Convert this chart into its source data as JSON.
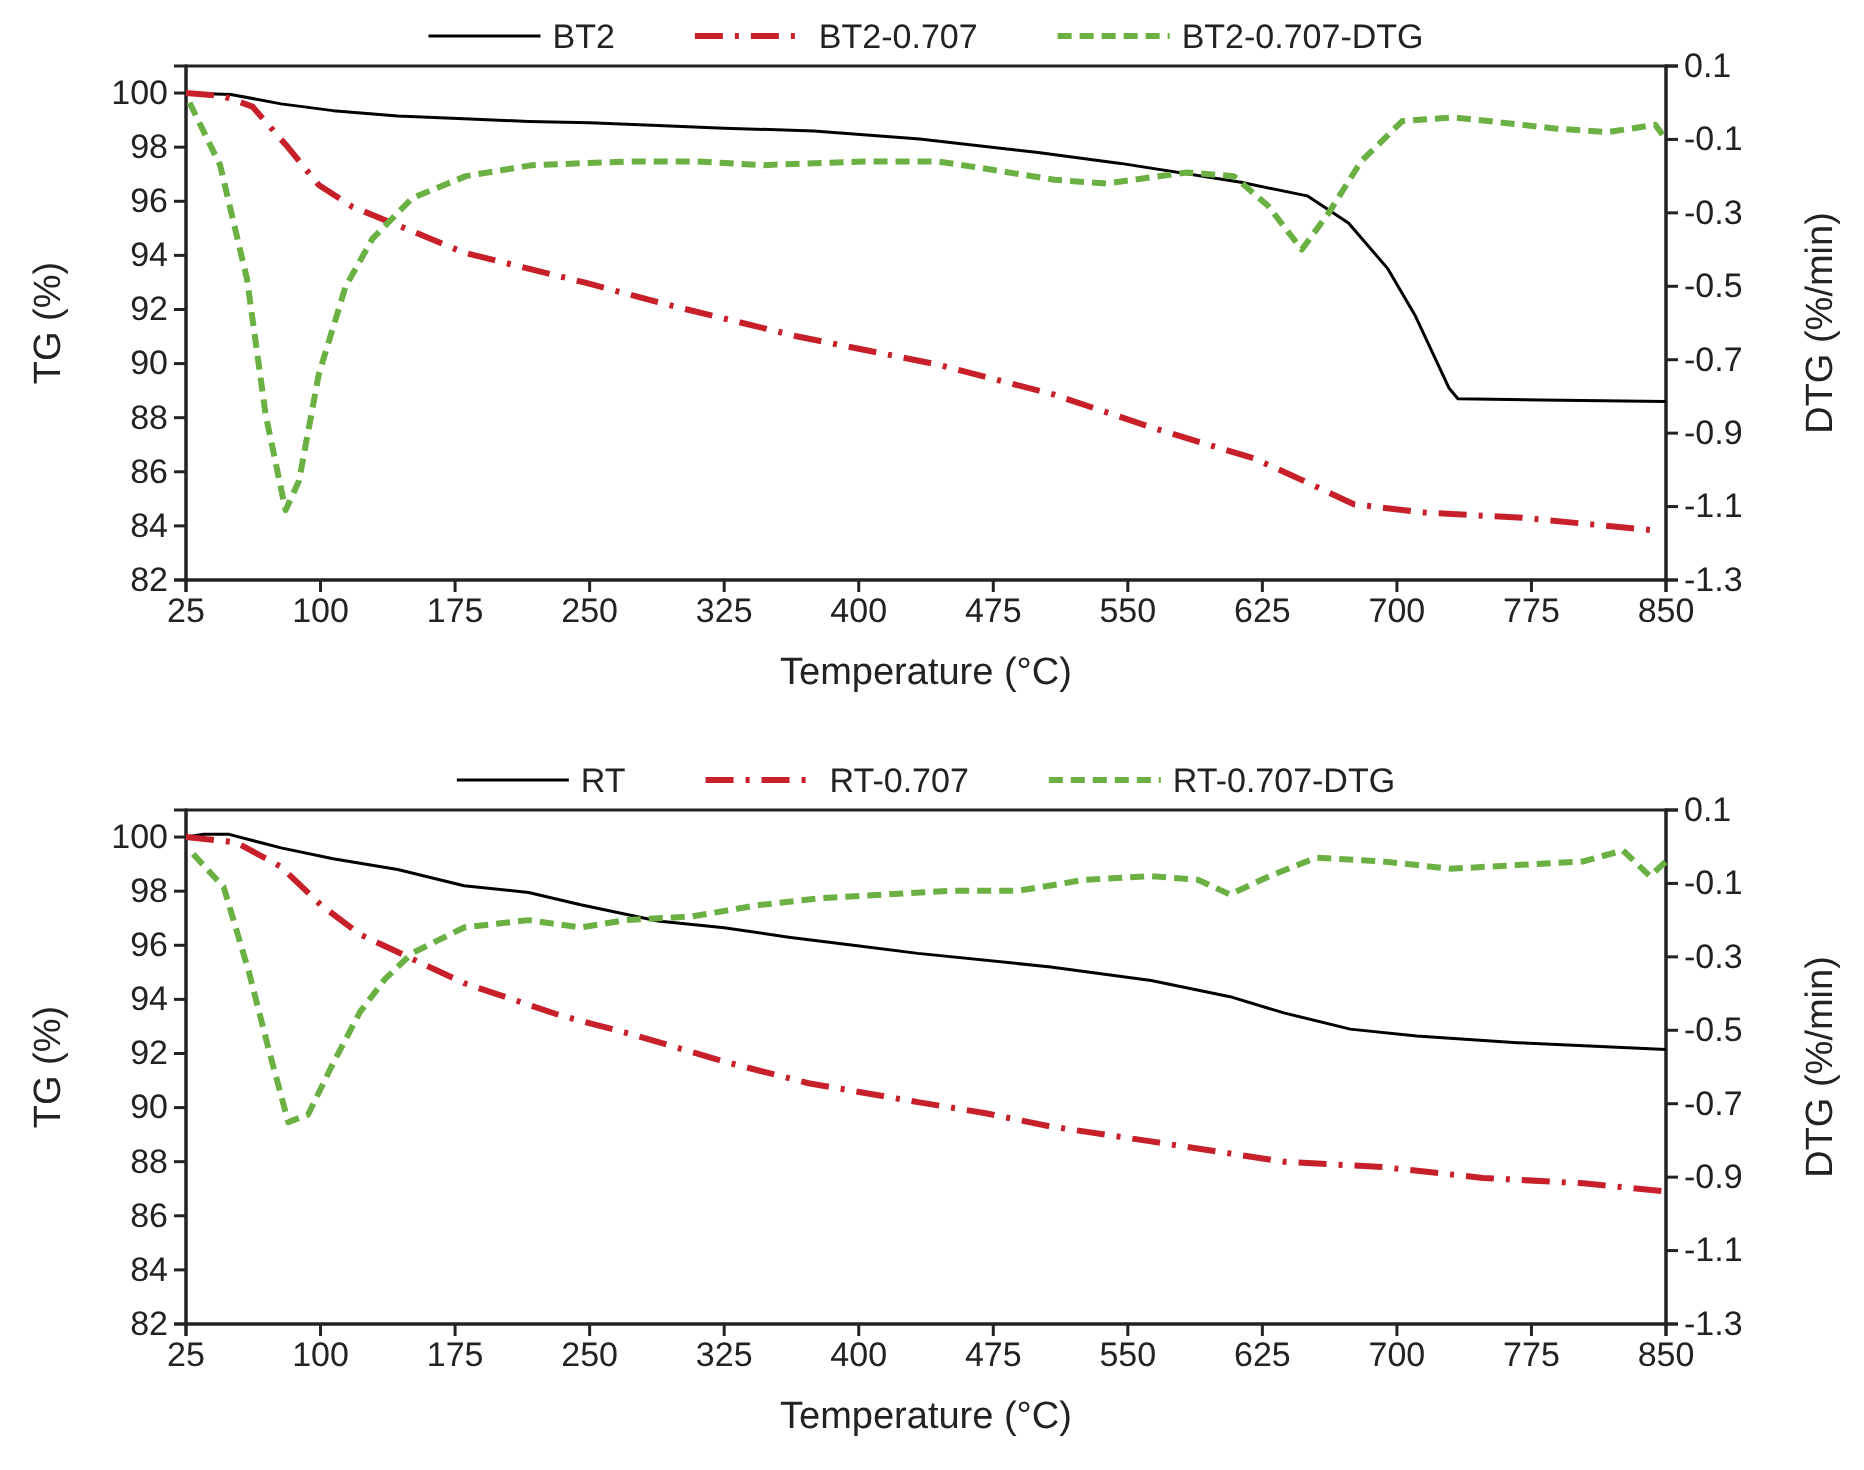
{
  "chart_data": [
    {
      "type": "line",
      "xlabel": "Temperature  (°C)",
      "ylabel": "TG (%)",
      "y2label": "DTG  (%/min)",
      "legend": "top",
      "grid": false,
      "xlim": [
        25,
        850
      ],
      "xticks": [
        25,
        100,
        175,
        250,
        325,
        400,
        475,
        550,
        625,
        700,
        775,
        850
      ],
      "ylim": [
        82,
        101
      ],
      "yticks": [
        82,
        84,
        86,
        88,
        90,
        92,
        94,
        96,
        98,
        100
      ],
      "y2lim": [
        -1.3,
        0.1
      ],
      "y2ticks": [
        -1.3,
        -1.1,
        -0.9,
        -0.7,
        -0.5,
        -0.3,
        -0.1,
        0.1
      ],
      "series": [
        {
          "name": "BT2",
          "color": "#000000",
          "line_style": "solid",
          "x": [
            25,
            50,
            78,
            107,
            143,
            180,
            216,
            250,
            288,
            325,
            375,
            434,
            500,
            546,
            613,
            650,
            673,
            695,
            710,
            729,
            734,
            780,
            850
          ],
          "values": [
            100,
            99.95,
            99.6,
            99.35,
            99.15,
            99.05,
            98.95,
            98.9,
            98.8,
            98.7,
            98.6,
            98.3,
            97.8,
            97.4,
            96.7,
            96.2,
            95.2,
            93.5,
            91.8,
            89.1,
            88.7,
            88.65,
            88.6
          ]
        },
        {
          "name": "BT2-0.707",
          "color": "#c8202a",
          "line_style": "dashdot",
          "x": [
            25,
            45,
            62,
            80.5,
            99,
            117.6,
            143.5,
            180,
            247,
            292,
            366,
            445,
            509,
            565,
            620,
            647,
            676,
            714,
            770,
            841
          ],
          "values": [
            100,
            99.9,
            99.5,
            98.1,
            96.6,
            95.8,
            95.1,
            94.1,
            93.0,
            92.2,
            91.0,
            89.95,
            88.85,
            87.6,
            86.5,
            85.7,
            84.8,
            84.5,
            84.3,
            83.85
          ]
        },
        {
          "name": "BT2-0.707-DTG",
          "color": "#6ab042",
          "line_style": "dashed",
          "axis": "y2",
          "x": [
            27,
            44,
            59,
            69.4,
            80.5,
            88,
            99,
            114,
            129,
            151,
            181,
            218,
            273,
            310,
            347,
            403,
            444,
            471,
            509,
            538,
            583,
            609,
            628,
            647,
            662,
            680,
            703,
            732,
            788,
            818,
            844,
            850
          ],
          "values": [
            0.0,
            -0.17,
            -0.48,
            -0.85,
            -1.11,
            -1.03,
            -0.74,
            -0.5,
            -0.37,
            -0.26,
            -0.2,
            -0.17,
            -0.16,
            -0.16,
            -0.17,
            -0.16,
            -0.16,
            -0.18,
            -0.21,
            -0.22,
            -0.19,
            -0.2,
            -0.28,
            -0.4,
            -0.3,
            -0.16,
            -0.05,
            -0.04,
            -0.07,
            -0.08,
            -0.06,
            -0.1
          ]
        }
      ]
    },
    {
      "type": "line",
      "xlabel": "Temperature  (°C)",
      "ylabel": "TG (%)",
      "y2label": "DTG  (%/min)",
      "legend": "top",
      "grid": false,
      "xlim": [
        25,
        850
      ],
      "xticks": [
        25,
        100,
        175,
        250,
        325,
        400,
        475,
        550,
        625,
        700,
        775,
        850
      ],
      "ylim": [
        82,
        101
      ],
      "yticks": [
        82,
        84,
        86,
        88,
        90,
        92,
        94,
        96,
        98,
        100
      ],
      "y2lim": [
        -1.3,
        0.1
      ],
      "y2ticks": [
        -1.3,
        -1.1,
        -0.9,
        -0.7,
        -0.5,
        -0.3,
        -0.1,
        0.1
      ],
      "series": [
        {
          "name": "RT",
          "color": "#000000",
          "line_style": "solid",
          "x": [
            25,
            35,
            49,
            78,
            107,
            143,
            180,
            216,
            245,
            288,
            325,
            361,
            397,
            433,
            507,
            563,
            607,
            637,
            674,
            711,
            767,
            850
          ],
          "values": [
            100,
            100.1,
            100.1,
            99.6,
            99.2,
            98.8,
            98.2,
            97.95,
            97.5,
            96.9,
            96.65,
            96.3,
            96.0,
            95.7,
            95.2,
            94.7,
            94.1,
            93.5,
            92.9,
            92.65,
            92.4,
            92.15
          ]
        },
        {
          "name": "RT-0.707",
          "color": "#c8202a",
          "line_style": "dashdot",
          "x": [
            25,
            53,
            78,
            100,
            122,
            151,
            180,
            234,
            274,
            325,
            372,
            433,
            470,
            507,
            563,
            607,
            637,
            692,
            748,
            804,
            850
          ],
          "values": [
            100,
            99.8,
            98.9,
            97.5,
            96.4,
            95.5,
            94.6,
            93.4,
            92.7,
            91.7,
            90.9,
            90.2,
            89.8,
            89.3,
            88.75,
            88.3,
            88.0,
            87.8,
            87.4,
            87.2,
            86.9
          ]
        },
        {
          "name": "RT-0.707-DTG",
          "color": "#6ab042",
          "line_style": "dashed",
          "axis": "y2",
          "x": [
            29,
            46,
            60,
            71,
            82,
            93,
            107,
            122,
            136,
            151,
            180,
            216,
            245,
            270,
            307,
            343,
            379,
            415,
            452,
            489,
            526,
            563,
            589,
            607,
            629,
            655,
            692,
            730,
            767,
            804,
            826,
            841,
            850
          ],
          "values": [
            -0.02,
            -0.11,
            -0.34,
            -0.55,
            -0.75,
            -0.73,
            -0.59,
            -0.45,
            -0.36,
            -0.29,
            -0.22,
            -0.2,
            -0.22,
            -0.2,
            -0.19,
            -0.16,
            -0.14,
            -0.13,
            -0.12,
            -0.12,
            -0.09,
            -0.08,
            -0.09,
            -0.13,
            -0.08,
            -0.03,
            -0.04,
            -0.06,
            -0.05,
            -0.04,
            -0.01,
            -0.08,
            -0.04
          ]
        }
      ]
    }
  ]
}
